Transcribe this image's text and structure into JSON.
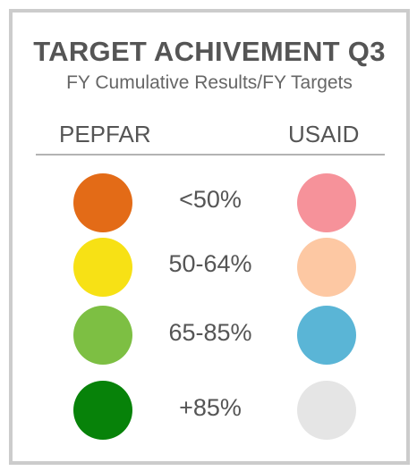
{
  "title": "TARGET ACHIVEMENT Q3",
  "subtitle": "FY Cumulative Results/FY Targets",
  "columns": {
    "left": "PEPFAR",
    "right": "USAID"
  },
  "rows": [
    {
      "range": "<50%",
      "pepfar_color": "#e36b17",
      "usaid_color": "#f6929a"
    },
    {
      "range": "50-64%",
      "pepfar_color": "#f7e115",
      "usaid_color": "#fdc8a3"
    },
    {
      "range": "65-85%",
      "pepfar_color": "#7dbf43",
      "usaid_color": "#5ab5d6"
    },
    {
      "range": "+85%",
      "pepfar_color": "#078209",
      "usaid_color": "#e5e5e5"
    }
  ]
}
